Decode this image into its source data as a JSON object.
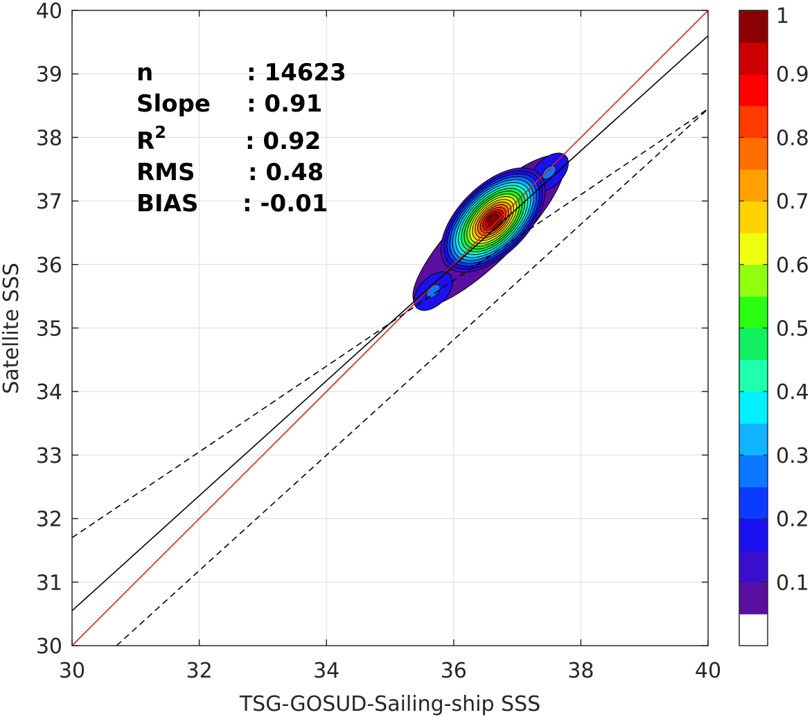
{
  "chart_data": {
    "type": "contour-density",
    "xlabel": "TSG-GOSUD-Sailing-ship SSS",
    "ylabel": "Satellite SSS",
    "xlim": [
      30,
      40
    ],
    "ylim": [
      30,
      40
    ],
    "x_ticks": [
      "30",
      "32",
      "34",
      "36",
      "38",
      "40"
    ],
    "y_ticks": [
      "30",
      "31",
      "32",
      "33",
      "34",
      "35",
      "36",
      "37",
      "38",
      "39",
      "40"
    ],
    "grid": true,
    "stats": [
      {
        "label": "n",
        "value": ": 14623"
      },
      {
        "label": "Slope",
        "value": ": 0.91"
      },
      {
        "label": "R",
        "sup": "2",
        "value": ": 0.92"
      },
      {
        "label": "RMS",
        "value": ": 0.48"
      },
      {
        "label": "BIAS",
        "value": ": -0.01"
      }
    ],
    "lines": [
      {
        "role": "one-to-one",
        "color": "#d62020",
        "style": "solid",
        "points": [
          [
            30,
            30
          ],
          [
            40,
            40
          ]
        ]
      },
      {
        "role": "regression",
        "color": "#000000",
        "style": "solid",
        "points": [
          [
            30,
            30.55
          ],
          [
            40,
            39.6
          ]
        ]
      },
      {
        "role": "upper-bound",
        "color": "#000000",
        "style": "dashed",
        "points": [
          [
            30,
            31.7
          ],
          [
            40,
            38.45
          ]
        ]
      },
      {
        "role": "lower-bound",
        "color": "#000000",
        "style": "dashed",
        "points": [
          [
            30.7,
            30
          ],
          [
            40,
            38.45
          ]
        ]
      }
    ],
    "density_centers": [
      {
        "x": 36.62,
        "y": 36.7,
        "peak": 1.0
      },
      {
        "x": 35.68,
        "y": 35.58,
        "peak": 0.22
      },
      {
        "x": 37.5,
        "y": 37.45,
        "peak": 0.2
      }
    ],
    "colorbar": {
      "range": [
        0,
        1
      ],
      "tick_labels": [
        "0.1",
        "0.2",
        "0.3",
        "0.4",
        "0.5",
        "0.6",
        "0.7",
        "0.8",
        "0.9",
        "1"
      ],
      "tick_values": [
        0.1,
        0.2,
        0.3,
        0.4,
        0.5,
        0.6,
        0.7,
        0.8,
        0.9,
        1.0
      ],
      "colors": [
        "#ffffff",
        "#5a0fa0",
        "#3a0ecf",
        "#1a10f0",
        "#0a3cff",
        "#0a78ff",
        "#10b4ff",
        "#00f0ff",
        "#20ffb0",
        "#10f060",
        "#28ff10",
        "#90ff10",
        "#f0ff10",
        "#ffd200",
        "#ffa000",
        "#ff6e00",
        "#ff3c00",
        "#ff0000",
        "#cc0000",
        "#8b0000"
      ]
    }
  }
}
